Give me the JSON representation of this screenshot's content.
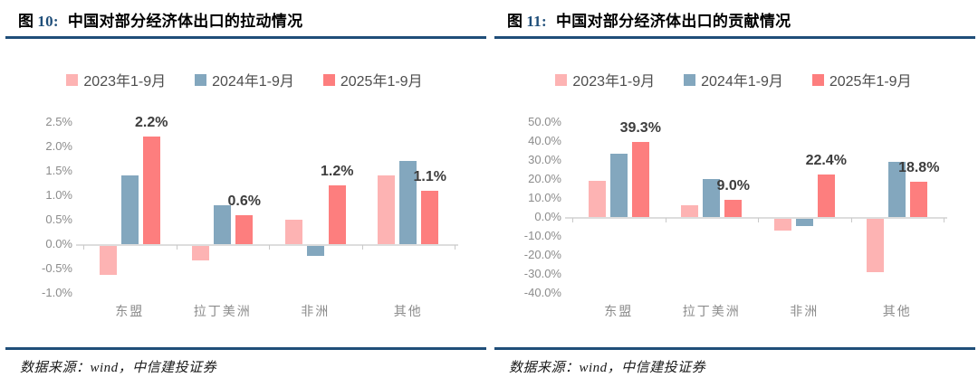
{
  "colors": {
    "rule": "#1F4E79",
    "fig_number": "#1F4E79",
    "axis_line": "#DDDDDD",
    "tick_text": "#8C8C8C",
    "data_label_text": "#3D3D3D",
    "series_2023": "#FDB3B3",
    "series_2024": "#83A7BE",
    "series_2025": "#FD7E7E"
  },
  "charts": [
    {
      "fig_zi": "图",
      "fig_num": "10:",
      "title": "中国对部分经济体出口的拉动情况",
      "source": "数据来源：wind，中信建投证券",
      "chart_data": {
        "type": "bar",
        "title": "图 10: 中国对部分经济体出口的拉动情况",
        "unit": "%",
        "categories": [
          "东盟",
          "拉丁美洲",
          "非洲",
          "其他"
        ],
        "series": [
          {
            "name": "2023年1-9月",
            "color": "#FDB3B3",
            "values": [
              -0.6,
              -0.3,
              0.5,
              1.4
            ]
          },
          {
            "name": "2024年1-9月",
            "color": "#83A7BE",
            "values": [
              1.4,
              0.8,
              -0.2,
              1.7
            ]
          },
          {
            "name": "2025年1-9月",
            "color": "#FD7E7E",
            "values": [
              2.2,
              0.6,
              1.2,
              1.1
            ]
          }
        ],
        "annotations": [
          {
            "category": "东盟",
            "series": "2025年1-9月",
            "text": "2.2%"
          },
          {
            "category": "拉丁美洲",
            "series": "2025年1-9月",
            "text": "0.6%"
          },
          {
            "category": "非洲",
            "series": "2025年1-9月",
            "text": "1.2%"
          },
          {
            "category": "其他",
            "series": "2025年1-9月",
            "text": "1.1%"
          }
        ],
        "ylim": [
          -1.0,
          2.5
        ],
        "yticks": [
          "2.5%",
          "2.0%",
          "1.5%",
          "1.0%",
          "0.5%",
          "0.0%",
          "-0.5%",
          "-1.0%"
        ],
        "legend_position": "top",
        "grid": false
      }
    },
    {
      "fig_zi": "图",
      "fig_num": "11:",
      "title": "中国对部分经济体出口的贡献情况",
      "source": "数据来源：wind，中信建投证券",
      "chart_data": {
        "type": "bar",
        "title": "图 11: 中国对部分经济体出口的贡献情况",
        "unit": "%",
        "categories": [
          "东盟",
          "拉丁美洲",
          "非洲",
          "其他"
        ],
        "series": [
          {
            "name": "2023年1-9月",
            "color": "#FDB3B3",
            "values": [
              19,
              6,
              -6,
              -28
            ]
          },
          {
            "name": "2024年1-9月",
            "color": "#83A7BE",
            "values": [
              33.5,
              20,
              -4,
              29
            ]
          },
          {
            "name": "2025年1-9月",
            "color": "#FD7E7E",
            "values": [
              39.3,
              9.0,
              22.4,
              18.8
            ]
          }
        ],
        "annotations": [
          {
            "category": "东盟",
            "series": "2025年1-9月",
            "text": "39.3%"
          },
          {
            "category": "拉丁美洲",
            "series": "2025年1-9月",
            "text": "9.0%"
          },
          {
            "category": "非洲",
            "series": "2025年1-9月",
            "text": "22.4%"
          },
          {
            "category": "其他",
            "series": "2025年1-9月",
            "text": "18.8%"
          }
        ],
        "ylim": [
          -40,
          50
        ],
        "yticks": [
          "50.0%",
          "40.0%",
          "30.0%",
          "20.0%",
          "10.0%",
          "0.0%",
          "-10.0%",
          "-20.0%",
          "-30.0%",
          "-40.0%"
        ],
        "legend_position": "top",
        "grid": false
      }
    }
  ]
}
